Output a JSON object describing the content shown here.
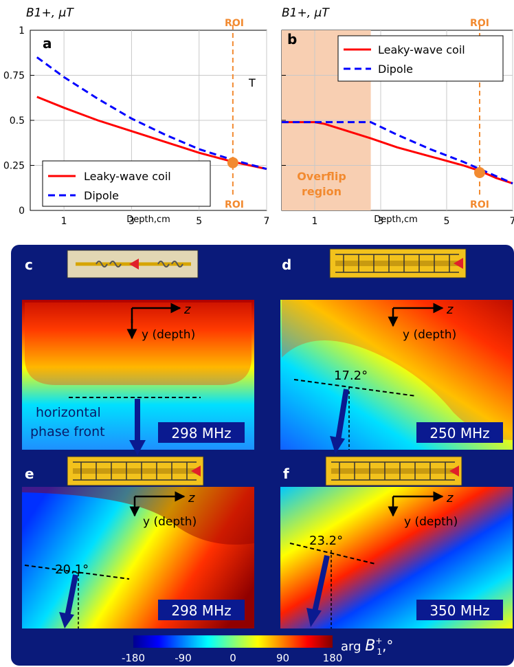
{
  "chart_data": [
    {
      "panel": "a",
      "type": "line",
      "ylabel": "B1+, μT",
      "xlabel": "Depth,cm",
      "xlim": [
        0,
        7
      ],
      "ylim": [
        0,
        1
      ],
      "xticks": [
        1,
        3,
        5,
        7
      ],
      "yticks": [
        "0",
        "0.25",
        "0.5",
        "0.75",
        "1"
      ],
      "roi_depth": 6,
      "roi_label": "ROI",
      "extra_label": "T",
      "legend": "bottom-left",
      "grid": true,
      "series": [
        {
          "name": "Leaky-wave coil",
          "color": "#ff0000",
          "style": "solid",
          "x": [
            0.2,
            1,
            2,
            3,
            4,
            5,
            6,
            7
          ],
          "y": [
            0.63,
            0.57,
            0.5,
            0.44,
            0.38,
            0.32,
            0.27,
            0.23
          ]
        },
        {
          "name": "Dipole",
          "color": "#0000ff",
          "style": "dashed",
          "x": [
            0.2,
            1,
            2,
            3,
            4,
            5,
            6,
            7
          ],
          "y": [
            0.85,
            0.74,
            0.62,
            0.51,
            0.42,
            0.34,
            0.28,
            0.23
          ]
        }
      ],
      "roi_point": [
        6,
        0.265
      ]
    },
    {
      "panel": "b",
      "type": "line",
      "ylabel": "B1+, μT",
      "xlabel": "Depth,cm",
      "xlim": [
        0,
        7
      ],
      "ylim": [
        0,
        1
      ],
      "xticks": [
        1,
        3,
        5,
        7
      ],
      "roi_depth": 6,
      "roi_label": "ROI",
      "overflip_label_1": "Overflip",
      "overflip_label_2": "region",
      "overflip_range": [
        0,
        2.7
      ],
      "legend": "top-right",
      "grid": true,
      "series": [
        {
          "name": "Leaky-wave coil",
          "color": "#ff0000",
          "style": "solid",
          "x": [
            0,
            1,
            1.3,
            2,
            2.7,
            3.5,
            4.5,
            5.5,
            6,
            6.5,
            7
          ],
          "y": [
            0.49,
            0.49,
            0.48,
            0.44,
            0.4,
            0.35,
            0.3,
            0.25,
            0.22,
            0.18,
            0.15
          ]
        },
        {
          "name": "Dipole",
          "color": "#0000ff",
          "style": "dashed",
          "x": [
            0,
            1,
            2,
            2.7,
            3.5,
            4.5,
            5.5,
            6,
            6.5,
            7
          ],
          "y": [
            0.49,
            0.49,
            0.49,
            0.49,
            0.42,
            0.34,
            0.27,
            0.23,
            0.19,
            0.15
          ]
        }
      ],
      "roi_point": [
        6,
        0.21
      ]
    }
  ],
  "field_panels": [
    {
      "letter": "c",
      "freq": "298 MHz",
      "z": "z",
      "y": "y (depth)",
      "note1": "horizontal",
      "note2": "phase front",
      "angle": ""
    },
    {
      "letter": "d",
      "freq": "250 MHz",
      "z": "z",
      "y": "y (depth)",
      "angle": "17.2°"
    },
    {
      "letter": "e",
      "freq": "298 MHz",
      "z": "z",
      "y": "y (depth)",
      "angle": "20.1°"
    },
    {
      "letter": "f",
      "freq": "350 MHz",
      "z": "z",
      "y": "y (depth)",
      "angle": "23.2°"
    }
  ],
  "colorbar": {
    "ticks": [
      "-180",
      "-90",
      "0",
      "90",
      "180"
    ],
    "label": "arg B1+,°",
    "colormap": "jet"
  }
}
